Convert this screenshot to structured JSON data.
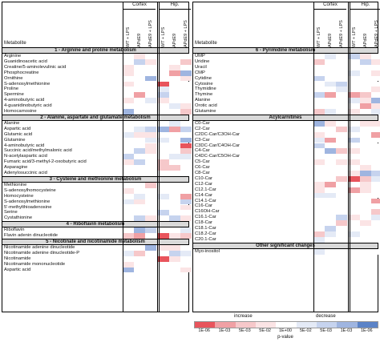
{
  "groups": [
    "Cortex",
    "Hip."
  ],
  "col_labels": [
    "WT + LPS",
    "APdE9",
    "APdE9 + LPS"
  ],
  "metabolite_header": "Metabolite",
  "left_panel": {
    "sections": [
      {
        "title": "1 - Arginine and proline metabolism",
        "rows": [
          "Arginine",
          "Guanidinoacetic acid",
          "Creatine/5-aminolevulinic acid",
          "Phosphocreatine",
          "Ornithine",
          "S-adenosylmethionine",
          "Proline",
          "Spermine",
          "4-aminobutyric acid",
          "4-guanidinobutyric acid",
          "Homocarnosine"
        ]
      },
      {
        "title": "2 - Alanine, aspartate and glutamate metabolism",
        "rows": [
          "Alanine",
          "Aspartic acid",
          "Glutamic acid",
          "Glutamine",
          "4-aminobutyric acid",
          "Succinic acid/methylmalonic acid",
          "N-acetylaspartic acid",
          "Fumaric acid/3-methyl-2-oxobutyric acid",
          "Asparagine",
          "Adenylosuccinic acid"
        ]
      },
      {
        "title": "3 - Cysteine and methionine metabolism",
        "rows": [
          "Methionine",
          "S-adenosylhomocysteine",
          "Homocysteine",
          "S-adenosylmethionine",
          "5'-methylthioadenosine",
          "Serine",
          "Cystathionine"
        ]
      },
      {
        "title": "4 - Riboflavin metabolism",
        "rows": [
          "Riboflavin",
          "Flavin adenin dinucleotide"
        ]
      },
      {
        "title": "5 - Nicotinate and nicotinamide metabolism",
        "rows": [
          "Nicotinamide adenine dinucleotide",
          "Nicotinamide adenine dinucleotide-P",
          "Nicotinamide",
          "Nicotinamide mononucleotide",
          "Aspartic acid"
        ]
      }
    ]
  },
  "right_panel": {
    "sections": [
      {
        "title": "6 - Pyrimidine metabolism",
        "rows": [
          "UMP",
          "Uridine",
          "Uracil",
          "CMP",
          "Cytidine",
          "Cytosine",
          "Thymidine",
          "Thymine",
          "Alanine",
          "Orotic acid",
          "Glutamine"
        ]
      },
      {
        "title": "Acylcarnitines",
        "rows": [
          "C0-Car",
          "C2-Car",
          "C2DC-Car/C3OH-Car",
          "C3-Car",
          "C3DC-Car/C4OH-Car",
          "C4-Car",
          "C4DC-Car/C5OH-Car",
          "C5-Car",
          "C6-Car",
          "C8-Car",
          "C10-Car",
          "C12-Car",
          "C12.1-Car",
          "C14-Car",
          "C14.1-Car",
          "C16-Car",
          "C16OH-Car",
          "C16.1-Car",
          "C18-Car",
          "C18.1-Car",
          "C18.2-Car",
          "C20.1-Car"
        ]
      },
      {
        "title": "Other significant changes",
        "rows": [
          "Myo-inositol"
        ]
      }
    ]
  },
  "legend": {
    "increase": "increase",
    "decrease": "decrease",
    "ticks": [
      "1E-06",
      "1E-03",
      "5E-03",
      "5E-02",
      "1E+00",
      "5E-02",
      "5E-03",
      "1E-03",
      "1E-06"
    ],
    "title": "p-value",
    "colors": [
      "#e8545c",
      "#f0a0a4",
      "#f6c8ca",
      "#fbe4e5",
      "#ffffff",
      "#e4eaf6",
      "#c6d3ee",
      "#9fb5e0",
      "#5b83c7"
    ]
  }
}
